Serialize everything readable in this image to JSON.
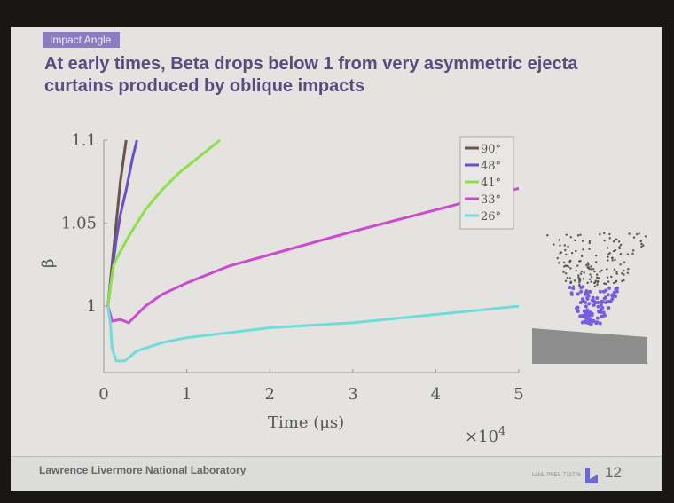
{
  "slide": {
    "section_tag": "Impact Angle",
    "title": "At early times, Beta drops below 1 from very asymmetric ejecta curtains produced by oblique impacts",
    "footer_lab": "Lawrence Livermore National Laboratory",
    "footer_code": "LLNL-PRES-772778",
    "page_number": "12"
  },
  "chart_data": {
    "type": "line",
    "xlabel": "Time (μs)",
    "ylabel": "β",
    "x_multiplier": "×10",
    "x_multiplier_exp": "4",
    "xlim": [
      0,
      5
    ],
    "ylim": [
      0.96,
      1.1
    ],
    "xticks": [
      "0",
      "1",
      "2",
      "3",
      "4",
      "5"
    ],
    "yticks": [
      {
        "v": 1.1,
        "label": "1.1"
      },
      {
        "v": 1.05,
        "label": "1.05"
      },
      {
        "v": 1,
        "label": "1"
      }
    ],
    "grid": false,
    "legend_position": "top-right",
    "series": [
      {
        "name": "90°",
        "color": "#6b5350",
        "x": [
          0.05,
          0.1,
          0.15,
          0.2,
          0.27
        ],
        "y": [
          1.0,
          1.025,
          1.05,
          1.075,
          1.1
        ]
      },
      {
        "name": "48°",
        "color": "#6a50c8",
        "x": [
          0.05,
          0.1,
          0.15,
          0.2,
          0.27,
          0.35,
          0.4
        ],
        "y": [
          1.0,
          1.02,
          1.04,
          1.055,
          1.07,
          1.09,
          1.1
        ]
      },
      {
        "name": "41°",
        "color": "#8ee04a",
        "x": [
          0.05,
          0.08,
          0.12,
          0.2,
          0.3,
          0.5,
          0.7,
          0.9,
          1.1,
          1.4
        ],
        "y": [
          1.0,
          1.012,
          1.025,
          1.033,
          1.042,
          1.058,
          1.07,
          1.08,
          1.088,
          1.1
        ]
      },
      {
        "name": "33°",
        "color": "#cc4ad0",
        "x": [
          0.05,
          0.08,
          0.1,
          0.2,
          0.3,
          0.4,
          0.5,
          0.7,
          1.0,
          1.5,
          2.0,
          3.0,
          4.0,
          5.0
        ],
        "y": [
          1.0,
          0.995,
          0.991,
          0.992,
          0.99,
          0.995,
          1.0,
          1.007,
          1.014,
          1.024,
          1.031,
          1.045,
          1.058,
          1.071
        ]
      },
      {
        "name": "26°",
        "color": "#6fdcdc",
        "x": [
          0.05,
          0.08,
          0.1,
          0.15,
          0.25,
          0.4,
          0.7,
          1.0,
          2.0,
          3.0,
          4.0,
          5.0
        ],
        "y": [
          1.0,
          0.99,
          0.975,
          0.967,
          0.967,
          0.973,
          0.978,
          0.981,
          0.987,
          0.99,
          0.995,
          1.0
        ]
      }
    ]
  }
}
